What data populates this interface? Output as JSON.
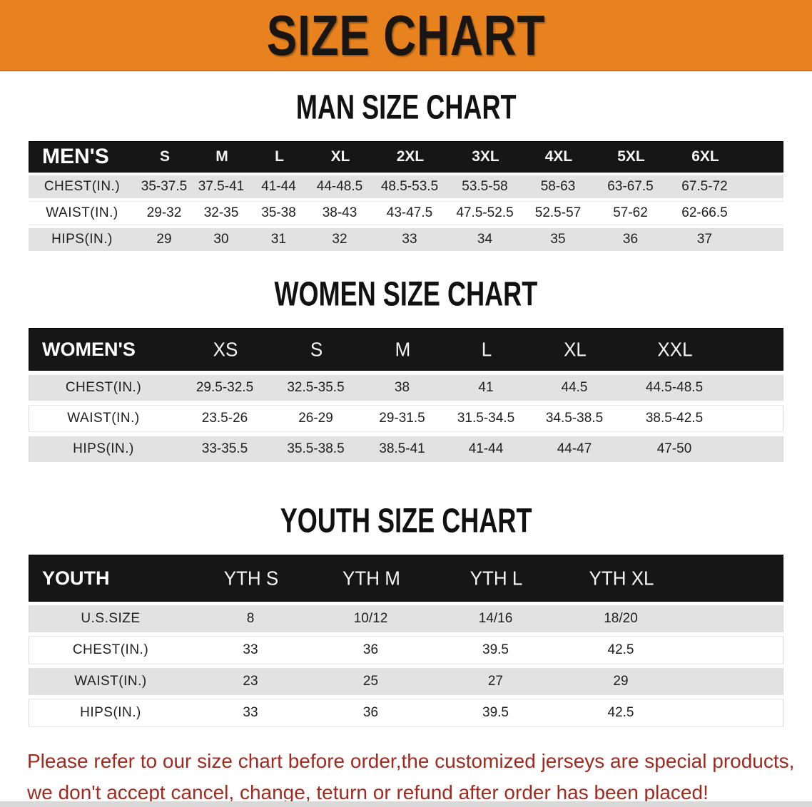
{
  "banner": {
    "title": "SIZE CHART",
    "bg_color": "#E8821E",
    "text_color": "#181512"
  },
  "colors": {
    "band_black": "#161616",
    "row_gray": "#E2E2E2",
    "footer_red": "#9E2A20"
  },
  "chart_data": [
    {
      "type": "table",
      "title": "MAN SIZE CHART",
      "header_label": "MEN'S",
      "columns": [
        "S",
        "M",
        "L",
        "XL",
        "2XL",
        "3XL",
        "4XL",
        "5XL",
        "6XL"
      ],
      "rows": [
        {
          "label": "CHEST(IN.)",
          "values": [
            "35-37.5",
            "37.5-41",
            "41-44",
            "44-48.5",
            "48.5-53.5",
            "53.5-58",
            "58-63",
            "63-67.5",
            "67.5-72"
          ]
        },
        {
          "label": "WAIST(IN.)",
          "values": [
            "29-32",
            "32-35",
            "35-38",
            "38-43",
            "43-47.5",
            "47.5-52.5",
            "52.5-57",
            "57-62",
            "62-66.5"
          ]
        },
        {
          "label": "HIPS(IN.)",
          "values": [
            "29",
            "30",
            "31",
            "32",
            "33",
            "34",
            "35",
            "36",
            "37"
          ]
        }
      ]
    },
    {
      "type": "table",
      "title": "WOMEN SIZE CHART",
      "header_label": "WOMEN'S",
      "columns": [
        "XS",
        "S",
        "M",
        "L",
        "XL",
        "XXL"
      ],
      "rows": [
        {
          "label": "CHEST(IN.)",
          "values": [
            "29.5-32.5",
            "32.5-35.5",
            "38",
            "41",
            "44.5",
            "44.5-48.5"
          ]
        },
        {
          "label": "WAIST(IN.)",
          "values": [
            "23.5-26",
            "26-29",
            "29-31.5",
            "31.5-34.5",
            "34.5-38.5",
            "38.5-42.5"
          ]
        },
        {
          "label": "HIPS(IN.)",
          "values": [
            "33-35.5",
            "35.5-38.5",
            "38.5-41",
            "41-44",
            "44-47",
            "47-50"
          ]
        }
      ]
    },
    {
      "type": "table",
      "title": "YOUTH SIZE CHART",
      "header_label": "YOUTH",
      "columns": [
        "YTH S",
        "YTH M",
        "YTH L",
        "YTH XL"
      ],
      "rows": [
        {
          "label": "U.S.SIZE",
          "values": [
            "8",
            "10/12",
            "14/16",
            "18/20"
          ]
        },
        {
          "label": "CHEST(IN.)",
          "values": [
            "33",
            "36",
            "39.5",
            "42.5"
          ]
        },
        {
          "label": "WAIST(IN.)",
          "values": [
            "23",
            "25",
            "27",
            "29"
          ]
        },
        {
          "label": "HIPS(IN.)",
          "values": [
            "33",
            "36",
            "39.5",
            "42.5"
          ]
        }
      ]
    }
  ],
  "footer": {
    "line1": "Please refer to our size chart before order,the customized jerseys are special products,",
    "line2": "we don't accept cancel, change, teturn or refund after order has been placed!"
  }
}
